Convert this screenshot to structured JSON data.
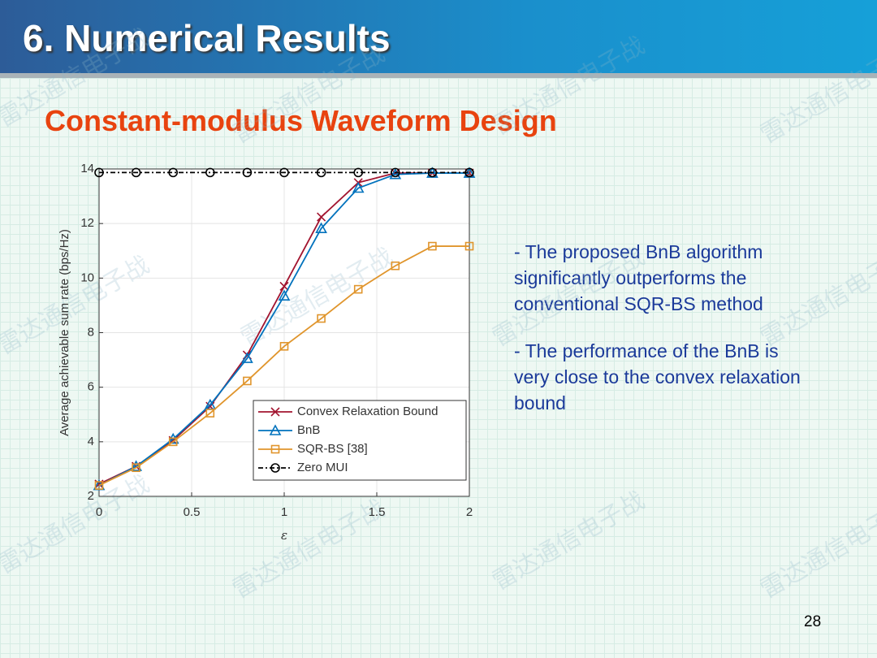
{
  "header": {
    "title": "6. Numerical Results"
  },
  "subtitle": "Constant-modulus Waveform Design",
  "bullets": [
    "- The proposed BnB algorithm significantly outperforms the conventional SQR-BS method",
    "- The performance of the BnB is very close to the convex relaxation bound"
  ],
  "page_number": "28",
  "watermark": "雷达通信电子战",
  "chart_data": {
    "type": "line",
    "x_label": "ε",
    "y_label": "Average achievable sum rate (bps/Hz)",
    "x": [
      0,
      0.2,
      0.4,
      0.6,
      0.8,
      1.0,
      1.2,
      1.4,
      1.6,
      1.8,
      2.0
    ],
    "series": [
      {
        "name": "Convex Relaxation Bound",
        "color": "#a2142f",
        "marker": "x",
        "linestyle": "solid",
        "values": [
          2.45,
          3.1,
          4.05,
          5.3,
          7.18,
          9.7,
          12.24,
          13.5,
          13.85,
          13.85,
          13.85
        ]
      },
      {
        "name": "BnB",
        "color": "#0072bd",
        "marker": "triangle",
        "linestyle": "solid",
        "values": [
          2.4,
          3.1,
          4.1,
          5.35,
          7.06,
          9.35,
          11.82,
          13.3,
          13.8,
          13.85,
          13.85
        ]
      },
      {
        "name": "SQR-BS [38]",
        "color": "#e0952c",
        "marker": "square",
        "linestyle": "solid",
        "values": [
          2.4,
          3.05,
          4.0,
          5.05,
          6.23,
          7.5,
          8.52,
          9.59,
          10.45,
          11.17,
          11.17
        ]
      },
      {
        "name": "Zero MUI",
        "color": "#000000",
        "marker": "circle",
        "linestyle": "dashed",
        "values": [
          13.87,
          13.87,
          13.87,
          13.87,
          13.87,
          13.87,
          13.87,
          13.87,
          13.87,
          13.87,
          13.87
        ]
      }
    ],
    "xlim": [
      0,
      2
    ],
    "xticks": [
      0,
      0.5,
      1,
      1.5,
      2
    ],
    "ylim": [
      2,
      14
    ],
    "yticks": [
      2,
      4,
      6,
      8,
      10,
      12,
      14
    ],
    "grid": true,
    "legend": "lower right"
  }
}
